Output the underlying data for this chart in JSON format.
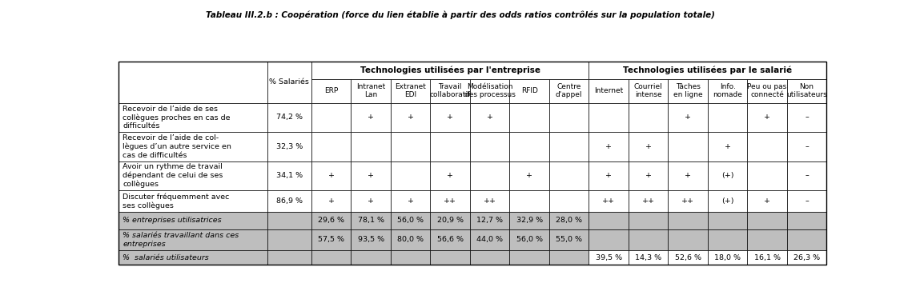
{
  "title": "Tableau III.2.b : Coopération (force du lien établie à partir des odds ratios contrôlés sur la population totale)",
  "header_group1": "Technologies utilisées par l'entreprise",
  "header_group2": "Technologies utilisées par le salarié",
  "col_pct": "% Salariés",
  "tech_entreprise": [
    "ERP",
    "Intranet\nLan",
    "Extranet\nEDI",
    "Travail\ncollaboratif",
    "Modélisation\ndes processus",
    "RFID",
    "Centre\nd'appel"
  ],
  "tech_salarie": [
    "Internet",
    "Courriel\nintense",
    "Tâches\nen ligne",
    "Info.\nnomade",
    "Peu ou pas\nconnecté",
    "Non\nutilisateurs"
  ],
  "row_labels": [
    "Recevoir de l’aide de ses\ncollègues proches en cas de\ndifficultés",
    "Recevoir de l’aide de col-\nlègues d’un autre service en\ncas de difficultés",
    "Avoir un rythme de travail\ndépendant de celui de ses\ncollègues",
    "Discuter fréquemment avec\nses collègues"
  ],
  "row_pct": [
    "74,2 %",
    "32,3 %",
    "34,1 %",
    "86,9 %"
  ],
  "data_entreprise": [
    [
      "",
      "+",
      "+",
      "+",
      "+",
      "",
      ""
    ],
    [
      "",
      "",
      "",
      "",
      "",
      "",
      ""
    ],
    [
      "+",
      "+",
      "",
      "+",
      "",
      "+",
      ""
    ],
    [
      "+",
      "+",
      "+",
      "++",
      "++",
      "",
      ""
    ]
  ],
  "data_salarie": [
    [
      "",
      "",
      "+",
      "",
      "+",
      "–"
    ],
    [
      "+",
      "+",
      "",
      "+",
      "",
      "–"
    ],
    [
      "+",
      "+",
      "+",
      "(+)",
      "",
      "–"
    ],
    [
      "++",
      "++",
      "++",
      "(+)",
      "+",
      "–"
    ]
  ],
  "footer_rows": [
    {
      "label": "% entreprises utilisatrices",
      "entreprise": [
        "29,6 %",
        "78,1 %",
        "56,0 %",
        "20,9 %",
        "12,7 %",
        "32,9 %",
        "28,0 %"
      ],
      "salarie": [
        "",
        "",
        "",
        "",
        "",
        ""
      ]
    },
    {
      "label": "% salariés travaillant dans ces\nentreprises",
      "entreprise": [
        "57,5 %",
        "93,5 %",
        "80,0 %",
        "56,6 %",
        "44,0 %",
        "56,0 %",
        "55,0 %"
      ],
      "salarie": [
        "",
        "",
        "",
        "",
        "",
        ""
      ]
    },
    {
      "label": "%  salariés utilisateurs",
      "entreprise": [
        "",
        "",
        "",
        "",
        "",
        "",
        ""
      ],
      "salarie": [
        "39,5 %",
        "14,3 %",
        "52,6 %",
        "18,0 %",
        "16,1 %",
        "26,3 %"
      ]
    }
  ],
  "gray_color": "#bebebe",
  "white": "#ffffff",
  "title_fontsize": 7.5,
  "cell_fontsize": 6.8,
  "header_fontsize": 7.5,
  "label_fontsize": 6.8,
  "footer_fontsize": 6.8
}
